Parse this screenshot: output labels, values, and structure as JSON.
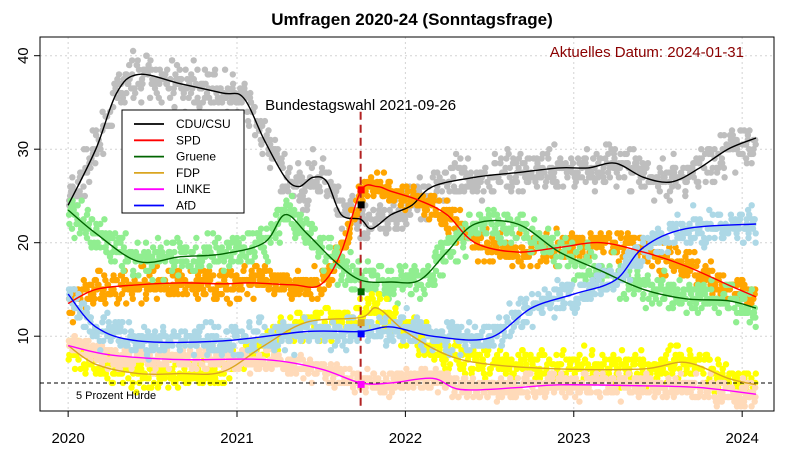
{
  "chart_data": {
    "type": "scatter",
    "title": "Umfragen 2020-24 (Sonntagsfrage)",
    "xlabel": "",
    "ylabel": "",
    "xlim": [
      "2019-11-01",
      "2024-03-10"
    ],
    "ylim": [
      2,
      42
    ],
    "x_ticks": [
      "2020",
      "2021",
      "2022",
      "2023",
      "2024"
    ],
    "x_tick_dates": [
      "2020-01-01",
      "2021-01-01",
      "2022-01-01",
      "2023-01-01",
      "2024-01-01"
    ],
    "y_ticks": [
      10,
      20,
      30,
      40
    ],
    "grid": true,
    "legend_position": "top-left",
    "annotations": {
      "current_date_label": "Aktuelles Datum:  2024-01-31",
      "election_label": "Bundestagswahl 2021-09-26",
      "election_date": "2021-09-26",
      "threshold_label": "5 Prozent Hürde",
      "threshold_value": 5
    },
    "election_results": [
      {
        "series": "CDU/CSU",
        "value": 24.1,
        "color": "#000000"
      },
      {
        "series": "SPD",
        "value": 25.7,
        "color": "#ff0000"
      },
      {
        "series": "Gruene",
        "value": 14.8,
        "color": "#006400"
      },
      {
        "series": "FDP",
        "value": 11.5,
        "color": "#daa520"
      },
      {
        "series": "LINKE",
        "value": 4.9,
        "color": "#ff00ff"
      },
      {
        "series": "AfD",
        "value": 10.3,
        "color": "#0000ff"
      }
    ],
    "series": [
      {
        "name": "CDU/CSU",
        "line_color": "#000000",
        "point_color": "#bebebe",
        "spread": 1.6,
        "trend": [
          [
            "2020-01-01",
            24
          ],
          [
            "2020-03-01",
            30
          ],
          [
            "2020-04-15",
            36
          ],
          [
            "2020-06-01",
            38
          ],
          [
            "2020-09-01",
            37
          ],
          [
            "2020-12-01",
            36
          ],
          [
            "2021-01-15",
            35.5
          ],
          [
            "2021-03-01",
            31
          ],
          [
            "2021-04-15",
            27
          ],
          [
            "2021-05-15",
            26
          ],
          [
            "2021-06-15",
            27
          ],
          [
            "2021-07-15",
            26.5
          ],
          [
            "2021-08-15",
            23
          ],
          [
            "2021-09-26",
            22.5
          ],
          [
            "2021-10-20",
            21.5
          ],
          [
            "2021-12-01",
            23
          ],
          [
            "2022-01-15",
            24
          ],
          [
            "2022-03-01",
            26
          ],
          [
            "2022-06-01",
            27
          ],
          [
            "2022-09-01",
            27.5
          ],
          [
            "2022-12-01",
            28
          ],
          [
            "2023-02-01",
            28
          ],
          [
            "2023-04-01",
            28.5
          ],
          [
            "2023-06-01",
            27
          ],
          [
            "2023-08-01",
            26.5
          ],
          [
            "2023-10-01",
            28
          ],
          [
            "2023-12-01",
            30
          ],
          [
            "2024-01-31",
            31.2
          ]
        ]
      },
      {
        "name": "SPD",
        "line_color": "#ff0000",
        "point_color": "#ffa500",
        "spread": 1.2,
        "trend": [
          [
            "2020-01-01",
            13.5
          ],
          [
            "2020-03-01",
            15
          ],
          [
            "2020-06-01",
            15.5
          ],
          [
            "2020-09-01",
            15.7
          ],
          [
            "2020-12-01",
            15.6
          ],
          [
            "2021-02-01",
            15.7
          ],
          [
            "2021-05-01",
            15.5
          ],
          [
            "2021-07-01",
            15.5
          ],
          [
            "2021-08-15",
            19
          ],
          [
            "2021-09-26",
            25.5
          ],
          [
            "2021-11-01",
            26
          ],
          [
            "2021-12-01",
            25.5
          ],
          [
            "2022-02-01",
            24.5
          ],
          [
            "2022-04-01",
            23
          ],
          [
            "2022-06-01",
            20
          ],
          [
            "2022-09-01",
            19
          ],
          [
            "2022-12-01",
            19.5
          ],
          [
            "2023-03-01",
            20
          ],
          [
            "2023-06-01",
            19
          ],
          [
            "2023-09-01",
            17.5
          ],
          [
            "2023-12-01",
            15.5
          ],
          [
            "2024-01-31",
            14.2
          ]
        ]
      },
      {
        "name": "Gruene",
        "line_color": "#006400",
        "point_color": "#90ee90",
        "spread": 1.4,
        "trend": [
          [
            "2020-01-01",
            23.5
          ],
          [
            "2020-03-01",
            21
          ],
          [
            "2020-06-01",
            18
          ],
          [
            "2020-09-01",
            18.5
          ],
          [
            "2020-12-01",
            18.8
          ],
          [
            "2021-03-01",
            20
          ],
          [
            "2021-04-15",
            23
          ],
          [
            "2021-06-01",
            21
          ],
          [
            "2021-08-01",
            18
          ],
          [
            "2021-09-26",
            16
          ],
          [
            "2021-12-01",
            15.8
          ],
          [
            "2022-02-01",
            16
          ],
          [
            "2022-04-01",
            19
          ],
          [
            "2022-06-01",
            22
          ],
          [
            "2022-09-01",
            22
          ],
          [
            "2022-12-01",
            19
          ],
          [
            "2023-03-01",
            17
          ],
          [
            "2023-06-01",
            15
          ],
          [
            "2023-09-01",
            14
          ],
          [
            "2023-12-01",
            13.8
          ],
          [
            "2024-01-31",
            13
          ]
        ]
      },
      {
        "name": "FDP",
        "line_color": "#daa520",
        "point_color": "#ffff00",
        "spread": 1.2,
        "trend": [
          [
            "2020-01-01",
            9
          ],
          [
            "2020-03-01",
            7
          ],
          [
            "2020-06-01",
            6
          ],
          [
            "2020-09-01",
            6
          ],
          [
            "2020-12-01",
            6.2
          ],
          [
            "2021-03-01",
            9
          ],
          [
            "2021-06-01",
            11.5
          ],
          [
            "2021-09-26",
            12
          ],
          [
            "2021-11-01",
            13
          ],
          [
            "2022-01-01",
            10.5
          ],
          [
            "2022-04-01",
            8
          ],
          [
            "2022-07-01",
            7
          ],
          [
            "2022-12-01",
            6.5
          ],
          [
            "2023-06-01",
            6.5
          ],
          [
            "2023-09-01",
            7.2
          ],
          [
            "2023-12-01",
            5.5
          ],
          [
            "2024-01-31",
            4.8
          ]
        ]
      },
      {
        "name": "LINKE",
        "line_color": "#ff00ff",
        "point_color": "#ffdab9",
        "spread": 0.9,
        "trend": [
          [
            "2020-01-01",
            9
          ],
          [
            "2020-04-01",
            8
          ],
          [
            "2020-09-01",
            7.5
          ],
          [
            "2021-03-01",
            7.5
          ],
          [
            "2021-07-01",
            6.5
          ],
          [
            "2021-09-26",
            5
          ],
          [
            "2021-12-01",
            5
          ],
          [
            "2022-03-01",
            5.5
          ],
          [
            "2022-05-01",
            4.3
          ],
          [
            "2022-09-01",
            4.5
          ],
          [
            "2022-12-01",
            4.8
          ],
          [
            "2023-06-01",
            4.7
          ],
          [
            "2023-10-01",
            4.5
          ],
          [
            "2024-01-31",
            3.8
          ]
        ]
      },
      {
        "name": "AfD",
        "line_color": "#0000ff",
        "point_color": "#add8e6",
        "spread": 1.2,
        "trend": [
          [
            "2020-01-01",
            14.5
          ],
          [
            "2020-03-01",
            11
          ],
          [
            "2020-06-01",
            9.5
          ],
          [
            "2020-12-01",
            9.5
          ],
          [
            "2021-06-01",
            10.5
          ],
          [
            "2021-09-26",
            10.5
          ],
          [
            "2021-12-01",
            11
          ],
          [
            "2022-03-01",
            10
          ],
          [
            "2022-07-01",
            9.8
          ],
          [
            "2022-10-01",
            13
          ],
          [
            "2023-01-01",
            14.5
          ],
          [
            "2023-04-01",
            16
          ],
          [
            "2023-06-01",
            19.5
          ],
          [
            "2023-09-01",
            21.5
          ],
          [
            "2024-01-31",
            22
          ]
        ]
      }
    ]
  }
}
